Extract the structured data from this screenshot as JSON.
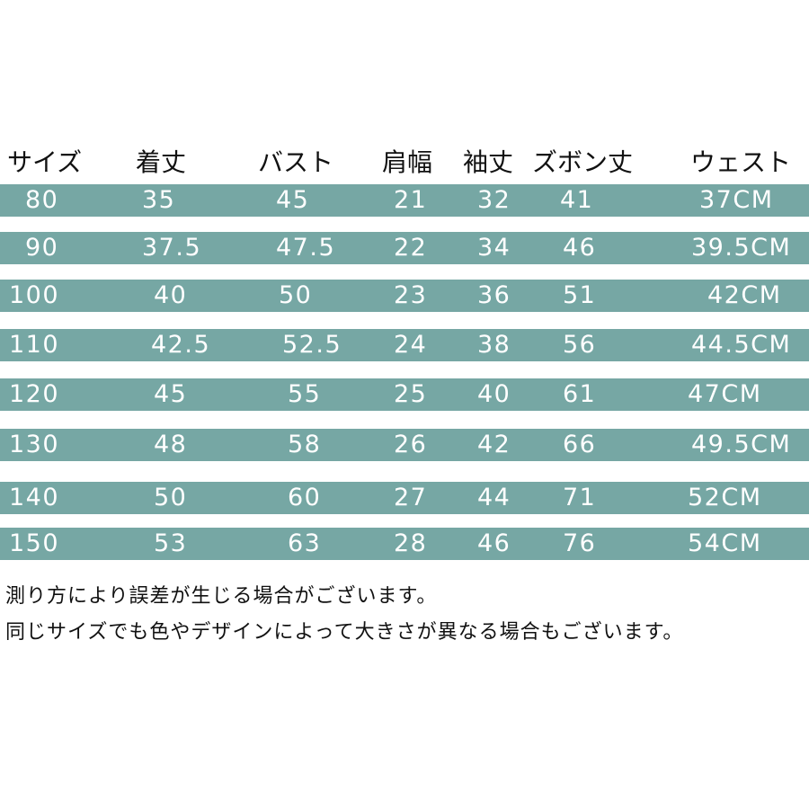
{
  "size_chart": {
    "headers": [
      "サイズ",
      "着丈",
      "バスト",
      "肩幅",
      "袖丈",
      "ズボン丈",
      "ウェスト"
    ],
    "rows": [
      [
        "80",
        "35",
        "45",
        "21",
        "32",
        "41",
        "37CM"
      ],
      [
        "90",
        "37.5",
        "47.5",
        "22",
        "34",
        "46",
        "39.5CM"
      ],
      [
        "100",
        "40",
        "50",
        "23",
        "36",
        "51",
        "42CM"
      ],
      [
        "110",
        "42.5",
        "52.5",
        "24",
        "38",
        "56",
        "44.5CM"
      ],
      [
        "120",
        "45",
        "55",
        "25",
        "40",
        "61",
        "47CM"
      ],
      [
        "130",
        "48",
        "58",
        "26",
        "42",
        "66",
        "49.5CM"
      ],
      [
        "140",
        "50",
        "60",
        "27",
        "44",
        "71",
        "52CM"
      ],
      [
        "150",
        "53",
        "63",
        "28",
        "46",
        "76",
        "54CM"
      ]
    ],
    "row_color": "#76a7a4",
    "text_color": "#ffffff"
  },
  "notes": {
    "line1": "測り方により誤差が生じる場合がございます。",
    "line2": "同じサイズでも色やデザインによって大きさが異なる場合もございます。"
  }
}
